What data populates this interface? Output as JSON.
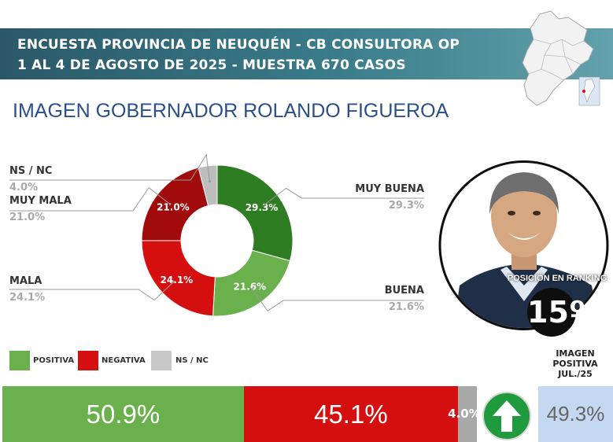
{
  "header": {
    "line1": "ENCUESTA PROVINCIA DE NEUQUÉN - CB CONSULTORA OP",
    "line2": "1 AL 4 DE AGOSTO DE 2025 - MUESTRA 670 CASOS"
  },
  "chart_data": {
    "type": "pie",
    "title": "IMAGEN GOBERNADOR  ROLANDO FIGUEROA",
    "slices": [
      {
        "label": "MUY BUENA",
        "value": 29.3,
        "text": "29.3%",
        "color": "#2e7d22"
      },
      {
        "label": "BUENA",
        "value": 21.6,
        "text": "21.6%",
        "color": "#6ab04c"
      },
      {
        "label": "MALA",
        "value": 24.1,
        "text": "24.1%",
        "color": "#d50f0f"
      },
      {
        "label": "MUY MALA",
        "value": 21.0,
        "text": "21.0%",
        "color": "#a20b0b"
      },
      {
        "label": "NS / NC",
        "value": 4.0,
        "text": "4.0%",
        "color": "#bdbdbd"
      }
    ],
    "summary": [
      {
        "label": "POSITIVA",
        "value": 50.9,
        "text": "50.9%",
        "color": "#6ab04c"
      },
      {
        "label": "NEGATIVA",
        "value": 45.1,
        "text": "45.1%",
        "color": "#d50f0f"
      },
      {
        "label": "NS / NC",
        "value": 4.0,
        "text": "4.0%",
        "color": "#a9a9a9"
      }
    ]
  },
  "ranking": {
    "label": "POSICIÓN EN RANKING",
    "value": "15º"
  },
  "previous": {
    "label": "IMAGEN POSITIVA JUL./25",
    "value": "49.3%"
  },
  "icons": {
    "trend": "up-arrow-icon",
    "map": "neuquen-map-icon",
    "photo": "governor-portrait"
  }
}
